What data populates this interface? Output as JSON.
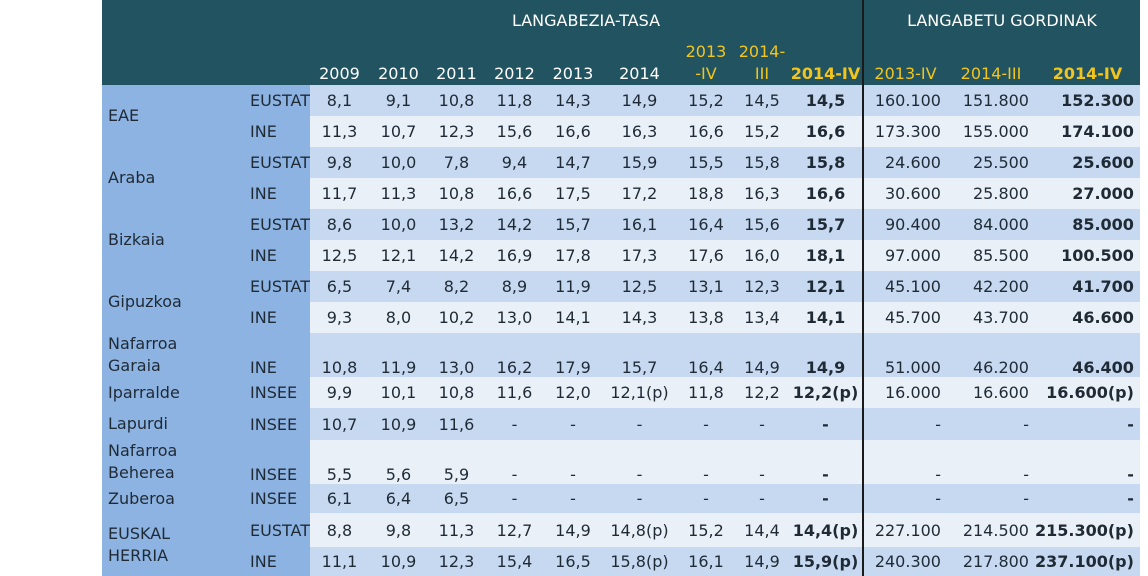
{
  "header": {
    "group1": "LANGABEZIA-TASA",
    "group2": "LANGABETU GORDINAK",
    "columns": [
      {
        "line1": "",
        "line2": "2009"
      },
      {
        "line1": "",
        "line2": "2010"
      },
      {
        "line1": "",
        "line2": "2011"
      },
      {
        "line1": "",
        "line2": "2012"
      },
      {
        "line1": "",
        "line2": "2013"
      },
      {
        "line1": "",
        "line2": "2014"
      },
      {
        "line1": "2013",
        "line2": "-IV"
      },
      {
        "line1": "2014-",
        "line2": "III"
      },
      {
        "line1": "",
        "line2": "2014-IV"
      },
      {
        "line1": "",
        "line2": "2013-IV"
      },
      {
        "line1": "",
        "line2": "2014-III"
      },
      {
        "line1": "",
        "line2": "2014-IV"
      }
    ]
  },
  "regions": [
    {
      "name": "EAE",
      "lines": [
        "EAE"
      ]
    },
    {
      "name": "Araba",
      "lines": [
        "Araba"
      ]
    },
    {
      "name": "Bizkaia",
      "lines": [
        "Bizkaia"
      ]
    },
    {
      "name": "Gipuzkoa",
      "lines": [
        "Gipuzkoa"
      ]
    },
    {
      "name": "Nafarroa Garaia",
      "lines": [
        "Nafarroa",
        "Garaia"
      ]
    },
    {
      "name": "Iparralde",
      "lines": [
        "Iparralde"
      ]
    },
    {
      "name": "Lapurdi",
      "lines": [
        "Lapurdi"
      ]
    },
    {
      "name": "Nafarroa Beherea",
      "lines": [
        "Nafarroa",
        "Beherea"
      ]
    },
    {
      "name": "Zuberoa",
      "lines": [
        "Zuberoa"
      ]
    },
    {
      "name": "EUSKAL HERRIA",
      "lines": [
        "EUSKAL",
        "HERRIA"
      ]
    }
  ],
  "rows": [
    {
      "source": "EUSTAT",
      "values": [
        "8,1",
        "9,1",
        "10,8",
        "11,8",
        "14,3",
        "14,9",
        "15,2",
        "14,5",
        "14,5",
        "160.100",
        "151.800",
        "152.300"
      ]
    },
    {
      "source": "INE",
      "values": [
        "11,3",
        "10,7",
        "12,3",
        "15,6",
        "16,6",
        "16,3",
        "16,6",
        "15,2",
        "16,6",
        "173.300",
        "155.000",
        "174.100"
      ]
    },
    {
      "source": "EUSTAT",
      "values": [
        "9,8",
        "10,0",
        "7,8",
        "9,4",
        "14,7",
        "15,9",
        "15,5",
        "15,8",
        "15,8",
        "24.600",
        "25.500",
        "25.600"
      ]
    },
    {
      "source": "INE",
      "values": [
        "11,7",
        "11,3",
        "10,8",
        "16,6",
        "17,5",
        "17,2",
        "18,8",
        "16,3",
        "16,6",
        "30.600",
        "25.800",
        "27.000"
      ]
    },
    {
      "source": "EUSTAT",
      "values": [
        "8,6",
        "10,0",
        "13,2",
        "14,2",
        "15,7",
        "16,1",
        "16,4",
        "15,6",
        "15,7",
        "90.400",
        "84.000",
        "85.000"
      ]
    },
    {
      "source": "INE",
      "values": [
        "12,5",
        "12,1",
        "14,2",
        "16,9",
        "17,8",
        "17,3",
        "17,6",
        "16,0",
        "18,1",
        "97.000",
        "85.500",
        "100.500"
      ]
    },
    {
      "source": "EUSTAT",
      "values": [
        "6,5",
        "7,4",
        "8,2",
        "8,9",
        "11,9",
        "12,5",
        "13,1",
        "12,3",
        "12,1",
        "45.100",
        "42.200",
        "41.700"
      ]
    },
    {
      "source": "INE",
      "values": [
        "9,3",
        "8,0",
        "10,2",
        "13,0",
        "14,1",
        "14,3",
        "13,8",
        "13,4",
        "14,1",
        "45.700",
        "43.700",
        "46.600"
      ]
    },
    {
      "source": "INE",
      "values": [
        "10,8",
        "11,9",
        "13,0",
        "16,2",
        "17,9",
        "15,7",
        "16,4",
        "14,9",
        "14,9",
        "51.000",
        "46.200",
        "46.400"
      ]
    },
    {
      "source": "INSEE",
      "values": [
        "9,9",
        "10,1",
        "10,8",
        "11,6",
        "12,0",
        "12,1(p)",
        "11,8",
        "12,2",
        "12,2(p)",
        "16.000",
        "16.600",
        "16.600(p)"
      ]
    },
    {
      "source": "INSEE",
      "values": [
        "10,7",
        "10,9",
        "11,6",
        "-",
        "-",
        "-",
        "-",
        "-",
        "-",
        "-",
        "-",
        "-"
      ]
    },
    {
      "source": "INSEE",
      "values": [
        "5,5",
        "5,6",
        "5,9",
        "-",
        "-",
        "-",
        "-",
        "-",
        "-",
        "-",
        "-",
        "-"
      ]
    },
    {
      "source": "INSEE",
      "values": [
        "6,1",
        "6,4",
        "6,5",
        "-",
        "-",
        "-",
        "-",
        "-",
        "-",
        "-",
        "-",
        "-"
      ]
    },
    {
      "source": "EUSTAT",
      "values": [
        "8,8",
        "9,8",
        "11,3",
        "12,7",
        "14,9",
        "14,8(p)",
        "15,2",
        "14,4",
        "14,4(p)",
        "227.100",
        "214.500",
        "215.300(p)"
      ]
    },
    {
      "source": "INE",
      "values": [
        "11,1",
        "10,9",
        "12,3",
        "15,4",
        "16,5",
        "15,8(p)",
        "16,1",
        "14,9",
        "15,9(p)",
        "240.300",
        "217.800",
        "237.100(p)"
      ]
    }
  ]
}
